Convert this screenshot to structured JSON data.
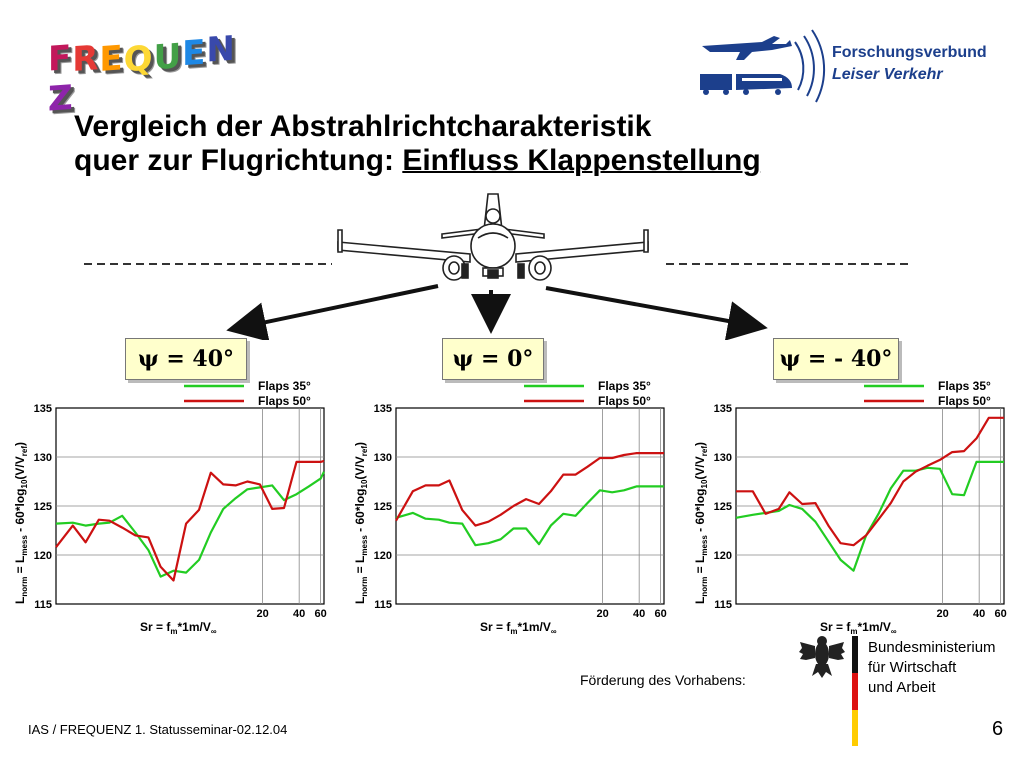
{
  "logo": {
    "letters": [
      "F",
      "R",
      "E",
      "Q",
      "U",
      "E",
      "N",
      "Z"
    ],
    "letter_colors": [
      "#c2185b",
      "#e53935",
      "#ff9800",
      "#fdd835",
      "#43a047",
      "#1e88e5",
      "#3949ab",
      "#8e24aa"
    ]
  },
  "partner": {
    "line1": "Forschungsverbund",
    "line2": "Leiser Verkehr",
    "color": "#1c3f8c"
  },
  "title": {
    "line1": "Vergleich der Abstrahlrichtcharakteristik",
    "line2_prefix": "quer zur Flugrichtung: ",
    "line2_emph": "Einfluss Klappenstellung"
  },
  "angles": [
    "ψ = 40°",
    "ψ = 0°",
    "ψ = - 40°"
  ],
  "colors": {
    "flaps35": "#22cc22",
    "flaps50": "#cc1111",
    "psi_box_bg": "#ffffcc"
  },
  "chart_data": [
    {
      "type": "line",
      "xlabel_main": "Sr = f",
      "xlabel_sub1": "m",
      "xlabel_mid": "*1m/V",
      "xlabel_sub2": "∞",
      "ylabel_main": "L",
      "ylabel_sub1": "norm",
      "ylabel_eq": " = L",
      "ylabel_sub2": "mess",
      "ylabel_rest1": " - 60*log",
      "ylabel_sub3": "10",
      "ylabel_rest2": "(V/V",
      "ylabel_sub4": "ref",
      "ylabel_rest3": ")",
      "ylim": [
        115,
        135
      ],
      "yticks": [
        "115",
        "120",
        "125",
        "130",
        "135"
      ],
      "xticks": [
        "20",
        "40",
        "60"
      ],
      "xtick_values": [
        20,
        40,
        60
      ],
      "xscale": "log",
      "xlim": [
        0.4,
        64
      ],
      "grid": true,
      "legend": "top-right",
      "x": [
        0.4,
        0.55,
        0.7,
        0.9,
        1.1,
        1.4,
        1.8,
        2.3,
        2.9,
        3.7,
        4.7,
        6,
        7.5,
        9.5,
        12,
        15,
        19,
        24,
        30,
        38,
        48,
        60,
        64
      ],
      "series": [
        {
          "name": "Flaps 35°",
          "values": [
            123.2,
            123.3,
            123.0,
            123.2,
            123.3,
            124.0,
            122.3,
            120.5,
            117.8,
            118.4,
            118.2,
            119.5,
            122.3,
            124.7,
            125.8,
            126.7,
            126.9,
            127.1,
            125.6,
            126.2,
            127.0,
            127.8,
            128.5
          ]
        },
        {
          "name": "Flaps 50°",
          "values": [
            120.8,
            123.0,
            121.3,
            123.6,
            123.5,
            122.8,
            122.0,
            121.8,
            118.8,
            117.4,
            123.2,
            124.6,
            128.4,
            127.2,
            127.1,
            127.5,
            127.2,
            124.7,
            124.8,
            129.5,
            129.5,
            129.5,
            129.6
          ]
        }
      ]
    },
    {
      "type": "line",
      "xlabel_main": "Sr = f",
      "xlabel_sub1": "m",
      "xlabel_mid": "*1m/V",
      "xlabel_sub2": "∞",
      "ylabel_main": "L",
      "ylabel_sub1": "norm",
      "ylabel_eq": " = L",
      "ylabel_sub2": "mess",
      "ylabel_rest1": " - 60*log",
      "ylabel_sub3": "10",
      "ylabel_rest2": "(V/V",
      "ylabel_sub4": "ref",
      "ylabel_rest3": ")",
      "ylim": [
        115,
        135
      ],
      "yticks": [
        "115",
        "120",
        "125",
        "130",
        "135"
      ],
      "xticks": [
        "20",
        "40",
        "60"
      ],
      "xtick_values": [
        20,
        40,
        60
      ],
      "xscale": "log",
      "xlim": [
        0.4,
        64
      ],
      "grid": true,
      "legend": "top-right",
      "x": [
        0.4,
        0.55,
        0.7,
        0.9,
        1.1,
        1.4,
        1.8,
        2.3,
        2.9,
        3.7,
        4.7,
        6,
        7.5,
        9.5,
        12,
        15,
        19,
        24,
        30,
        38,
        48,
        60,
        64
      ],
      "series": [
        {
          "name": "Flaps 35°",
          "values": [
            123.8,
            124.3,
            123.7,
            123.6,
            123.3,
            123.2,
            121.0,
            121.2,
            121.6,
            122.7,
            122.7,
            121.1,
            123.0,
            124.2,
            124.0,
            125.3,
            126.6,
            126.4,
            126.6,
            127.0,
            127.0,
            127.0,
            127.0
          ]
        },
        {
          "name": "Flaps 50°",
          "values": [
            123.5,
            126.5,
            127.1,
            127.1,
            127.6,
            124.6,
            123.0,
            123.4,
            124.1,
            125.0,
            125.7,
            125.2,
            126.5,
            128.2,
            128.2,
            129.0,
            129.9,
            129.9,
            130.2,
            130.4,
            130.4,
            130.4,
            130.4
          ]
        }
      ]
    },
    {
      "type": "line",
      "xlabel_main": "Sr = f",
      "xlabel_sub1": "m",
      "xlabel_mid": "*1m/V",
      "xlabel_sub2": "∞",
      "ylabel_main": "L",
      "ylabel_sub1": "norm",
      "ylabel_eq": " = L",
      "ylabel_sub2": "mess",
      "ylabel_rest1": " - 60*log",
      "ylabel_sub3": "10",
      "ylabel_rest2": "(V/V",
      "ylabel_sub4": "ref",
      "ylabel_rest3": ")",
      "ylim": [
        115,
        135
      ],
      "yticks": [
        "115",
        "120",
        "125",
        "130",
        "135"
      ],
      "xticks": [
        "20",
        "40",
        "60"
      ],
      "xtick_values": [
        20,
        40,
        60
      ],
      "xscale": "log",
      "xlim": [
        0.4,
        64
      ],
      "grid": true,
      "legend": "top-right",
      "x": [
        0.4,
        0.55,
        0.7,
        0.9,
        1.1,
        1.4,
        1.8,
        2.3,
        2.9,
        3.7,
        4.7,
        6,
        7.5,
        9.5,
        12,
        15,
        19,
        24,
        30,
        38,
        48,
        60,
        64
      ],
      "series": [
        {
          "name": "Flaps 35°",
          "values": [
            123.8,
            124.1,
            124.3,
            124.5,
            125.1,
            124.7,
            123.4,
            121.4,
            119.5,
            118.4,
            122.0,
            124.3,
            126.8,
            128.6,
            128.6,
            128.9,
            128.8,
            126.2,
            126.1,
            129.5,
            129.5,
            129.5,
            129.5
          ]
        },
        {
          "name": "Flaps 50°",
          "values": [
            126.5,
            126.5,
            124.2,
            124.7,
            126.4,
            125.2,
            125.3,
            123.0,
            121.2,
            121.0,
            122.0,
            123.7,
            125.3,
            127.5,
            128.5,
            129.1,
            129.7,
            130.5,
            130.6,
            131.9,
            134.0,
            134.0,
            134.0
          ]
        }
      ]
    }
  ],
  "footer": {
    "foerderung": "Förderung des Vorhabens:",
    "ministry_line1": "Bundesministerium",
    "ministry_line2": "für Wirtschaft",
    "ministry_line3": "und Arbeit",
    "left_text": "IAS / FREQUENZ  1. Statusseminar-02.12.04",
    "page_number": "6"
  }
}
